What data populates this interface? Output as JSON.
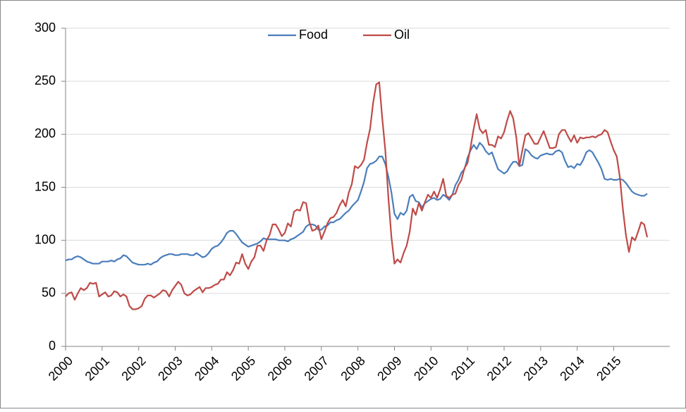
{
  "chart_data": {
    "type": "line",
    "categories": [
      "2000",
      null,
      null,
      null,
      null,
      null,
      null,
      null,
      null,
      null,
      null,
      null,
      "2001",
      null,
      null,
      null,
      null,
      null,
      null,
      null,
      null,
      null,
      null,
      null,
      "2002",
      null,
      null,
      null,
      null,
      null,
      null,
      null,
      null,
      null,
      null,
      null,
      "2003",
      null,
      null,
      null,
      null,
      null,
      null,
      null,
      null,
      null,
      null,
      null,
      "2004",
      null,
      null,
      null,
      null,
      null,
      null,
      null,
      null,
      null,
      null,
      null,
      "2005",
      null,
      null,
      null,
      null,
      null,
      null,
      null,
      null,
      null,
      null,
      null,
      "2006",
      null,
      null,
      null,
      null,
      null,
      null,
      null,
      null,
      null,
      null,
      null,
      "2007",
      null,
      null,
      null,
      null,
      null,
      null,
      null,
      null,
      null,
      null,
      null,
      "2008",
      null,
      null,
      null,
      null,
      null,
      null,
      null,
      null,
      null,
      null,
      null,
      "2009",
      null,
      null,
      null,
      null,
      null,
      null,
      null,
      null,
      null,
      null,
      null,
      "2010",
      null,
      null,
      null,
      null,
      null,
      null,
      null,
      null,
      null,
      null,
      null,
      "2011",
      null,
      null,
      null,
      null,
      null,
      null,
      null,
      null,
      null,
      null,
      null,
      "2012",
      null,
      null,
      null,
      null,
      null,
      null,
      null,
      null,
      null,
      null,
      null,
      "2013",
      null,
      null,
      null,
      null,
      null,
      null,
      null,
      null,
      null,
      null,
      null,
      "2014",
      null,
      null,
      null,
      null,
      null,
      null,
      null,
      null,
      null,
      null,
      null,
      "2015",
      null,
      null,
      null,
      null,
      null,
      null,
      null,
      null,
      null,
      null,
      null
    ],
    "series": [
      {
        "name": "Food",
        "color": "#4a7ebb",
        "values": [
          81,
          82,
          82,
          84,
          85,
          84,
          82,
          80,
          79,
          78,
          78,
          78,
          80,
          80,
          80,
          81,
          80,
          82,
          83,
          86,
          85,
          82,
          79,
          78,
          77,
          77,
          77,
          78,
          77,
          79,
          80,
          83,
          85,
          86,
          87,
          87,
          86,
          86,
          87,
          87,
          87,
          86,
          86,
          88,
          86,
          84,
          85,
          88,
          92,
          94,
          95,
          98,
          102,
          107,
          109,
          109,
          106,
          102,
          98,
          96,
          94,
          95,
          96,
          97,
          99,
          102,
          101,
          101,
          101,
          101,
          100,
          100,
          100,
          99,
          101,
          102,
          104,
          106,
          108,
          113,
          115,
          115,
          114,
          110,
          110,
          113,
          114,
          117,
          117,
          119,
          120,
          123,
          126,
          128,
          132,
          135,
          138,
          146,
          155,
          168,
          172,
          173,
          175,
          179,
          179,
          172,
          160,
          145,
          125,
          120,
          126,
          124,
          128,
          141,
          143,
          137,
          136,
          131,
          135,
          137,
          139,
          140,
          138,
          139,
          143,
          141,
          138,
          143,
          152,
          157,
          164,
          167,
          178,
          185,
          190,
          186,
          192,
          189,
          184,
          181,
          183,
          175,
          167,
          165,
          163,
          165,
          170,
          174,
          174,
          170,
          171,
          186,
          184,
          180,
          178,
          177,
          180,
          181,
          182,
          181,
          181,
          184,
          185,
          183,
          175,
          169,
          170,
          168,
          172,
          171,
          176,
          183,
          185,
          183,
          178,
          173,
          167,
          158,
          157,
          158,
          157,
          157,
          158,
          157,
          154,
          150,
          146,
          144,
          143,
          142,
          142,
          144
        ]
      },
      {
        "name": "Oil",
        "color": "#be4b48",
        "values": [
          47,
          50,
          51,
          44,
          50,
          55,
          53,
          55,
          60,
          59,
          60,
          47,
          49,
          51,
          47,
          48,
          52,
          51,
          47,
          49,
          47,
          38,
          35,
          35,
          36,
          38,
          45,
          48,
          48,
          46,
          48,
          50,
          53,
          52,
          47,
          53,
          57,
          61,
          58,
          50,
          48,
          49,
          52,
          54,
          56,
          51,
          55,
          55,
          56,
          58,
          59,
          63,
          63,
          70,
          67,
          72,
          79,
          78,
          87,
          78,
          73,
          80,
          84,
          95,
          95,
          90,
          100,
          105,
          115,
          115,
          110,
          104,
          107,
          116,
          113,
          127,
          129,
          128,
          136,
          135,
          118,
          109,
          110,
          114,
          101,
          108,
          116,
          121,
          122,
          126,
          133,
          138,
          132,
          145,
          153,
          170,
          168,
          171,
          176,
          192,
          205,
          230,
          247,
          249,
          215,
          185,
          140,
          103,
          78,
          82,
          79,
          88,
          95,
          108,
          130,
          124,
          135,
          128,
          136,
          143,
          140,
          146,
          140,
          148,
          158,
          142,
          140,
          143,
          144,
          152,
          157,
          168,
          173,
          188,
          205,
          219,
          205,
          201,
          204,
          190,
          190,
          188,
          198,
          196,
          202,
          213,
          222,
          215,
          197,
          170,
          185,
          199,
          201,
          196,
          191,
          191,
          197,
          203,
          195,
          187,
          187,
          188,
          200,
          204,
          204,
          198,
          193,
          199,
          192,
          197,
          196,
          197,
          197,
          198,
          197,
          199,
          200,
          204,
          202,
          193,
          185,
          179,
          160,
          130,
          105,
          89,
          103,
          100,
          108,
          117,
          115,
          103
        ]
      }
    ],
    "ylim": [
      0,
      300
    ],
    "yticks": [
      0,
      50,
      100,
      150,
      200,
      250,
      300
    ],
    "grid": true,
    "legend": "top"
  }
}
